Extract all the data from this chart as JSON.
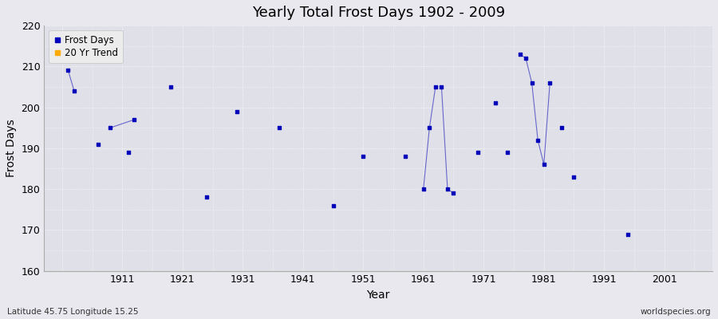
{
  "title": "Yearly Total Frost Days 1902 - 2009",
  "xlabel": "Year",
  "ylabel": "Frost Days",
  "subtitle": "Latitude 45.75 Longitude 15.25",
  "watermark": "worldspecies.org",
  "ylim": [
    160,
    220
  ],
  "xlim": [
    1898,
    2009
  ],
  "yticks": [
    160,
    170,
    180,
    190,
    200,
    210,
    220
  ],
  "xticks": [
    1901,
    1911,
    1921,
    1931,
    1941,
    1951,
    1961,
    1971,
    1981,
    1991,
    2001
  ],
  "xtick_labels": [
    "",
    "1911",
    "1921",
    "1931",
    "1941",
    "1951",
    "1961",
    "1971",
    "1981",
    "1991",
    "2001"
  ],
  "data_points": [
    [
      1902,
      209
    ],
    [
      1903,
      204
    ],
    [
      1907,
      191
    ],
    [
      1909,
      195
    ],
    [
      1912,
      189
    ],
    [
      1913,
      197
    ],
    [
      1919,
      205
    ],
    [
      1925,
      178
    ],
    [
      1930,
      199
    ],
    [
      1937,
      195
    ],
    [
      1946,
      176
    ],
    [
      1951,
      188
    ],
    [
      1958,
      188
    ],
    [
      1961,
      180
    ],
    [
      1962,
      195
    ],
    [
      1963,
      205
    ],
    [
      1964,
      205
    ],
    [
      1965,
      180
    ],
    [
      1966,
      179
    ],
    [
      1970,
      189
    ],
    [
      1973,
      201
    ],
    [
      1975,
      189
    ],
    [
      1977,
      213
    ],
    [
      1978,
      212
    ],
    [
      1979,
      206
    ],
    [
      1980,
      192
    ],
    [
      1981,
      186
    ],
    [
      1982,
      206
    ],
    [
      1984,
      195
    ],
    [
      1986,
      183
    ],
    [
      1995,
      169
    ]
  ],
  "line_segments": [
    [
      [
        1902,
        209
      ],
      [
        1903,
        204
      ]
    ],
    [
      [
        1909,
        195
      ],
      [
        1913,
        197
      ]
    ],
    [
      [
        1961,
        180
      ],
      [
        1962,
        195
      ],
      [
        1963,
        205
      ]
    ],
    [
      [
        1964,
        205
      ],
      [
        1965,
        180
      ],
      [
        1966,
        179
      ]
    ],
    [
      [
        1977,
        213
      ],
      [
        1978,
        212
      ],
      [
        1979,
        206
      ],
      [
        1980,
        192
      ],
      [
        1981,
        186
      ],
      [
        1982,
        206
      ]
    ]
  ],
  "point_color": "#0000bb",
  "line_color": "#6666cc",
  "bg_color": "#e8e8ee",
  "plot_bg_color": "#e0e0e8",
  "grid_color": "#ffffff",
  "legend_items": [
    {
      "label": "Frost Days",
      "color": "#0000bb",
      "marker": "s"
    },
    {
      "label": "20 Yr Trend",
      "color": "#ffaa00",
      "marker": "s"
    }
  ]
}
